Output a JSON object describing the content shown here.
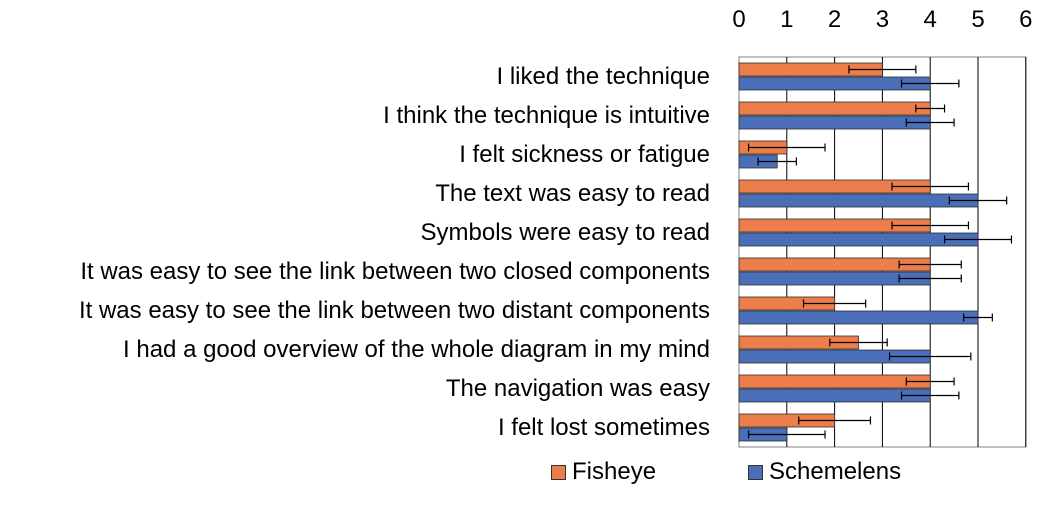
{
  "chart_data": {
    "type": "bar",
    "orientation": "horizontal",
    "categories": [
      "I liked the technique",
      "I think the technique is intuitive",
      "I felt sickness or fatigue",
      "The text was easy to read",
      "Symbols were easy to read",
      "It was easy to see the link between two closed components",
      "It was easy to see the link between two distant components",
      "I had a good overview of the whole diagram in my mind",
      "The navigation was easy",
      "I felt lost sometimes"
    ],
    "series": [
      {
        "name": "Fisheye",
        "color": "#ED7D4A",
        "values": [
          3,
          4,
          1,
          4,
          4,
          4,
          2,
          2.5,
          4,
          2
        ],
        "errors": [
          0.7,
          0.3,
          0.8,
          0.8,
          0.8,
          0.65,
          0.65,
          0.6,
          0.5,
          0.75
        ]
      },
      {
        "name": "Schemelens",
        "color": "#4A6FB8",
        "values": [
          4,
          4,
          0.8,
          5,
          5,
          4,
          5,
          4,
          4,
          1
        ],
        "errors": [
          0.6,
          0.5,
          0.4,
          0.6,
          0.7,
          0.65,
          0.3,
          0.85,
          0.6,
          0.8
        ]
      }
    ],
    "x_ticks": [
      "0",
      "1",
      "2",
      "3",
      "4",
      "5",
      "6"
    ],
    "xlim": [
      0,
      6
    ],
    "x_axis_position": "top",
    "grid": true,
    "legend_position": "bottom"
  }
}
